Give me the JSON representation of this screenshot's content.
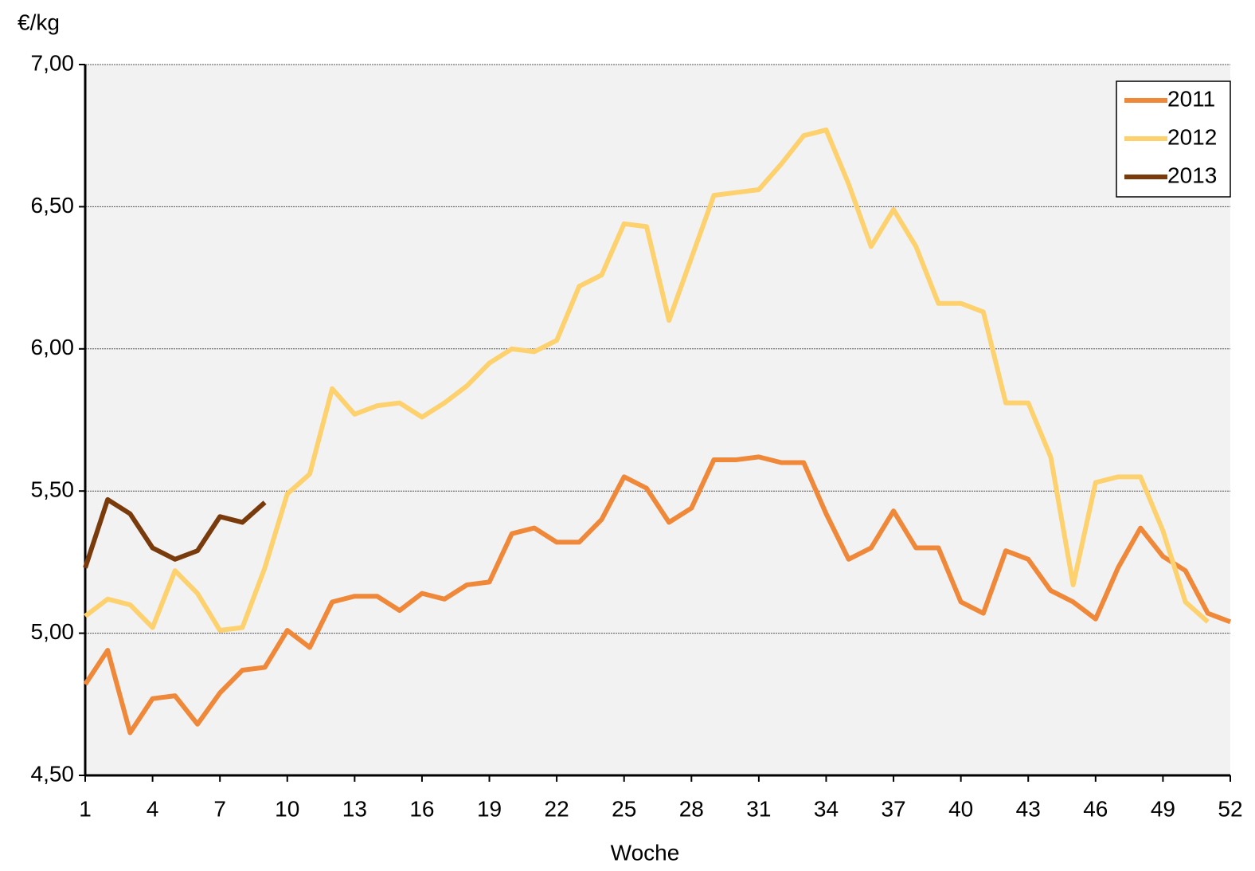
{
  "chart_data": {
    "type": "line",
    "y_label": "€/kg",
    "x_label": "Woche",
    "x": [
      1,
      2,
      3,
      4,
      5,
      6,
      7,
      8,
      9,
      10,
      11,
      12,
      13,
      14,
      15,
      16,
      17,
      18,
      19,
      20,
      21,
      22,
      23,
      24,
      25,
      26,
      27,
      28,
      29,
      30,
      31,
      32,
      33,
      34,
      35,
      36,
      37,
      38,
      39,
      40,
      41,
      42,
      43,
      44,
      45,
      46,
      47,
      48,
      49,
      50,
      51,
      52
    ],
    "xlim": [
      1,
      52
    ],
    "xticks": [
      1,
      4,
      7,
      10,
      13,
      16,
      19,
      22,
      25,
      28,
      31,
      34,
      37,
      40,
      43,
      46,
      49,
      52
    ],
    "ylim": [
      4.5,
      7
    ],
    "yticks": [
      {
        "value": 4.5,
        "label": "4,50"
      },
      {
        "value": 5,
        "label": "5,00"
      },
      {
        "value": 5.5,
        "label": "5,50"
      },
      {
        "value": 6,
        "label": "6,00"
      },
      {
        "value": 6.5,
        "label": "6,50"
      },
      {
        "value": 7,
        "label": "7,00"
      }
    ],
    "grid": true,
    "legend": "upper right",
    "series": [
      {
        "name": "2011",
        "color": "#f0883a",
        "values": [
          4.82,
          4.94,
          4.65,
          4.77,
          4.78,
          4.68,
          4.79,
          4.87,
          4.88,
          5.01,
          4.95,
          5.11,
          5.13,
          5.13,
          5.08,
          5.14,
          5.12,
          5.17,
          5.18,
          5.35,
          5.37,
          5.32,
          5.32,
          5.4,
          5.55,
          5.51,
          5.39,
          5.44,
          5.61,
          5.61,
          5.62,
          5.6,
          5.6,
          5.42,
          5.26,
          5.3,
          5.43,
          5.3,
          5.3,
          5.11,
          5.07,
          5.29,
          5.26,
          5.15,
          5.11,
          5.05,
          5.23,
          5.37,
          5.27,
          5.22,
          5.07,
          5.04
        ]
      },
      {
        "name": "2012",
        "color": "#fdd16e",
        "values": [
          5.06,
          5.12,
          5.1,
          5.02,
          5.22,
          5.14,
          5.01,
          5.02,
          5.23,
          5.49,
          5.56,
          5.86,
          5.77,
          5.8,
          5.81,
          5.76,
          5.81,
          5.87,
          5.95,
          6.0,
          5.99,
          6.03,
          6.22,
          6.26,
          6.44,
          6.43,
          6.1,
          6.32,
          6.54,
          6.55,
          6.56,
          6.65,
          6.75,
          6.77,
          6.58,
          6.36,
          6.49,
          6.36,
          6.16,
          6.16,
          6.13,
          5.81,
          5.81,
          5.62,
          5.17,
          5.53,
          5.55,
          5.55,
          5.36,
          5.11,
          5.04,
          null
        ]
      },
      {
        "name": "2013",
        "color": "#7a3b0c",
        "values": [
          5.23,
          5.47,
          5.42,
          5.3,
          5.26,
          5.29,
          5.41,
          5.39,
          5.46,
          null,
          null,
          null,
          null,
          null,
          null,
          null,
          null,
          null,
          null,
          null,
          null,
          null,
          null,
          null,
          null,
          null,
          null,
          null,
          null,
          null,
          null,
          null,
          null,
          null,
          null,
          null,
          null,
          null,
          null,
          null,
          null,
          null,
          null,
          null,
          null,
          null,
          null,
          null,
          null,
          null,
          null,
          null
        ]
      }
    ]
  }
}
